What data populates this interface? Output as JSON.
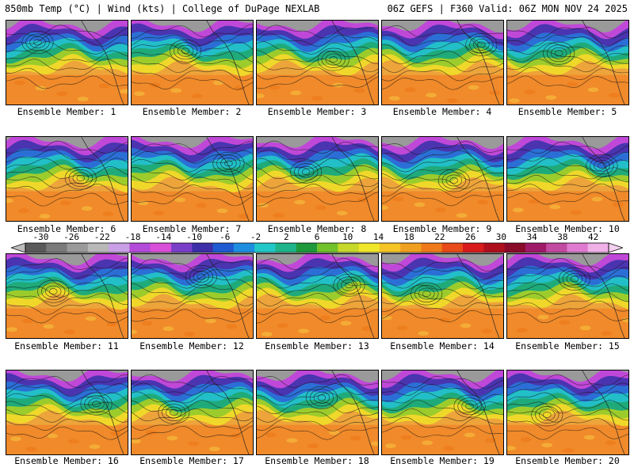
{
  "header": {
    "left": "850mb Temp (°C) | Wind (kts) | College of DuPage NEXLAB",
    "right": "06Z GEFS | F360 Valid: 06Z MON NOV 24 2025"
  },
  "members": [
    {
      "label": "Ensemble Member: 1"
    },
    {
      "label": "Ensemble Member: 2"
    },
    {
      "label": "Ensemble Member: 3"
    },
    {
      "label": "Ensemble Member: 4"
    },
    {
      "label": "Ensemble Member: 5"
    },
    {
      "label": "Ensemble Member: 6"
    },
    {
      "label": "Ensemble Member: 7"
    },
    {
      "label": "Ensemble Member: 8"
    },
    {
      "label": "Ensemble Member: 9"
    },
    {
      "label": "Ensemble Member: 10"
    },
    {
      "label": "Ensemble Member: 11"
    },
    {
      "label": "Ensemble Member: 12"
    },
    {
      "label": "Ensemble Member: 13"
    },
    {
      "label": "Ensemble Member: 14"
    },
    {
      "label": "Ensemble Member: 15"
    },
    {
      "label": "Ensemble Member: 16"
    },
    {
      "label": "Ensemble Member: 17"
    },
    {
      "label": "Ensemble Member: 18"
    },
    {
      "label": "Ensemble Member: 19"
    },
    {
      "label": "Ensemble Member: 20"
    }
  ],
  "colorbar": {
    "min": -32,
    "max": 44,
    "ticks": [
      "-30",
      "-26",
      "-22",
      "-18",
      "-14",
      "-10",
      "-6",
      "-2",
      "2",
      "6",
      "10",
      "14",
      "18",
      "22",
      "26",
      "30",
      "34",
      "38",
      "42"
    ],
    "tick_values": [
      -30,
      -26,
      -22,
      -18,
      -14,
      -10,
      -6,
      -2,
      2,
      6,
      10,
      14,
      18,
      22,
      26,
      30,
      34,
      38,
      42
    ],
    "colors": [
      "#5a5a5a",
      "#7a7a7a",
      "#9a9a9a",
      "#b8b8b8",
      "#c9a0e6",
      "#b44ad9",
      "#d94fd9",
      "#7a3fc9",
      "#3c2fa8",
      "#1f5ad0",
      "#1e8fe0",
      "#22c8c8",
      "#1fb48a",
      "#1e9a3c",
      "#72c22c",
      "#c6d82a",
      "#f0e62a",
      "#f5c426",
      "#f0a020",
      "#ee7a1c",
      "#e84a18",
      "#d81c1c",
      "#b0101e",
      "#8a0a2a",
      "#a01a6a",
      "#c24aa0",
      "#e07ad0",
      "#f0b0e8"
    ]
  }
}
